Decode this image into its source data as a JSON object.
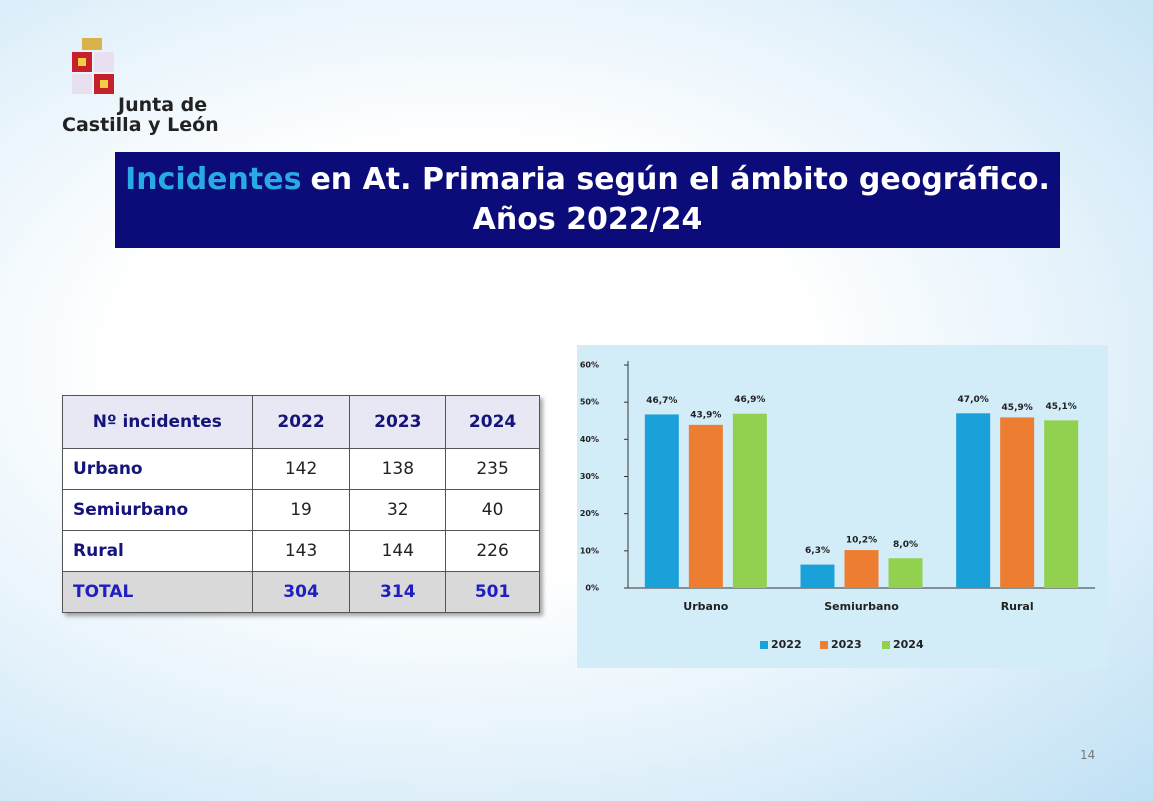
{
  "logo": {
    "line1": "Junta de",
    "line2": "Castilla y León"
  },
  "title": {
    "highlight": "Incidentes",
    "rest": "en At. Primaria según el ámbito geográfico.",
    "line2": "Años 2022/24"
  },
  "table": {
    "header": [
      "Nº incidentes",
      "2022",
      "2023",
      "2024"
    ],
    "rows": [
      [
        "Urbano",
        "142",
        "138",
        "235"
      ],
      [
        "Semiurbano",
        "19",
        "32",
        "40"
      ],
      [
        "Rural",
        "143",
        "144",
        "226"
      ],
      [
        "TOTAL",
        "304",
        "314",
        "501"
      ]
    ]
  },
  "chart_data": {
    "type": "bar",
    "categories": [
      "Urbano",
      "Semiurbano",
      "Rural"
    ],
    "series": [
      {
        "name": "2022",
        "color": "#1ba1d9",
        "values": [
          46.7,
          6.3,
          47.0
        ],
        "value_labels": [
          "46,7%",
          "6,3%",
          "47,0%"
        ]
      },
      {
        "name": "2023",
        "color": "#ed7d31",
        "values": [
          43.9,
          10.2,
          45.9
        ],
        "value_labels": [
          "43,9%",
          "10,2%",
          "45,9%"
        ]
      },
      {
        "name": "2024",
        "color": "#92d050",
        "values": [
          46.9,
          8.0,
          45.1
        ],
        "value_labels": [
          "46,9%",
          "8,0%",
          "45,1%"
        ]
      }
    ],
    "ylim": [
      0,
      60
    ],
    "yticks": [
      {
        "value": 0,
        "label": "0%"
      },
      {
        "value": 10,
        "label": "10%"
      },
      {
        "value": 20,
        "label": "20%"
      },
      {
        "value": 30,
        "label": "30%"
      },
      {
        "value": 40,
        "label": "40%"
      },
      {
        "value": 50,
        "label": "50%"
      },
      {
        "value": 60,
        "label": "60%"
      }
    ],
    "legend": "bottom"
  },
  "page_number": "14"
}
